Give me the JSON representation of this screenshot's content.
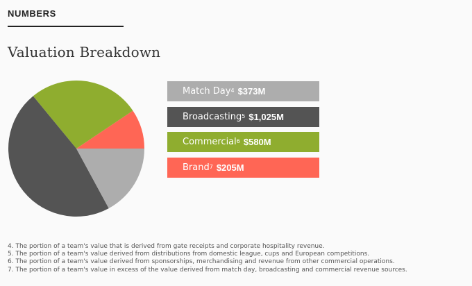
{
  "header": {
    "section_label": "NUMBERS",
    "title": "Valuation Breakdown"
  },
  "chart_data": {
    "type": "pie",
    "categories": [
      "Match Day",
      "Broadcasting",
      "Commercial",
      "Brand"
    ],
    "footnote_refs": [
      "4",
      "5",
      "6",
      "7"
    ],
    "values": [
      373,
      1025,
      580,
      205
    ],
    "value_labels": [
      "$373M",
      "$1,025M",
      "$580M",
      "$205M"
    ],
    "colors": [
      "#adadad",
      "#545454",
      "#8fad2f",
      "#ff6655"
    ],
    "slice_order": [
      "Brand",
      "Commercial",
      "Broadcasting",
      "Match Day"
    ],
    "legend_position": "right"
  },
  "footnotes": [
    "4. The portion of a team's value that is derived from gate receipts and corporate hospitality revenue.",
    "5. The portion of a team's value derived from distributions from domestic league, cups and European competitions.",
    "6. The portion of a team's value derived from sponsorships, merchandising and revenue from other commercial operations.",
    "7. The portion of a team's value in excess of the value derived from match day, broadcasting and commercial revenue sources."
  ]
}
